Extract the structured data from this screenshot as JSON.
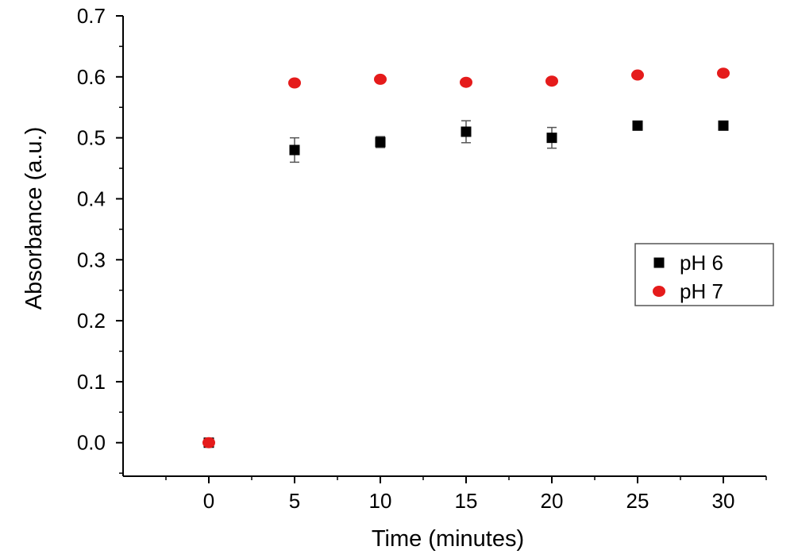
{
  "chart_data": {
    "type": "scatter",
    "title": "",
    "xlabel": "Time (minutes)",
    "ylabel": "Absorbance (a.u.)",
    "xlim": [
      -5,
      32.5
    ],
    "ylim": [
      -0.055,
      0.7
    ],
    "x_ticks": [
      0,
      5,
      10,
      15,
      20,
      25,
      30
    ],
    "y_ticks": [
      0.0,
      0.1,
      0.2,
      0.3,
      0.4,
      0.5,
      0.6,
      0.7
    ],
    "x_tick_labels": [
      "0",
      "5",
      "10",
      "15",
      "20",
      "25",
      "30"
    ],
    "y_tick_labels": [
      "0.0",
      "0.1",
      "0.2",
      "0.3",
      "0.4",
      "0.5",
      "0.6",
      "0.7"
    ],
    "grid": false,
    "legend_position": "right",
    "series": [
      {
        "name": "pH 6",
        "marker": "square",
        "color": "#000000",
        "x": [
          0,
          5,
          10,
          15,
          20,
          25,
          30
        ],
        "y": [
          0.0,
          0.48,
          0.493,
          0.51,
          0.5,
          0.52,
          0.52
        ],
        "error": [
          0.0,
          0.02,
          0.009,
          0.018,
          0.017,
          0.006,
          0.006
        ]
      },
      {
        "name": "pH 7",
        "marker": "circle",
        "color": "#e51b1b",
        "x": [
          0,
          5,
          10,
          15,
          20,
          25,
          30
        ],
        "y": [
          0.0,
          0.59,
          0.596,
          0.591,
          0.593,
          0.603,
          0.606
        ],
        "error": [
          0.0,
          0.003,
          0.003,
          0.004,
          0.003,
          0.003,
          0.003
        ]
      }
    ]
  }
}
